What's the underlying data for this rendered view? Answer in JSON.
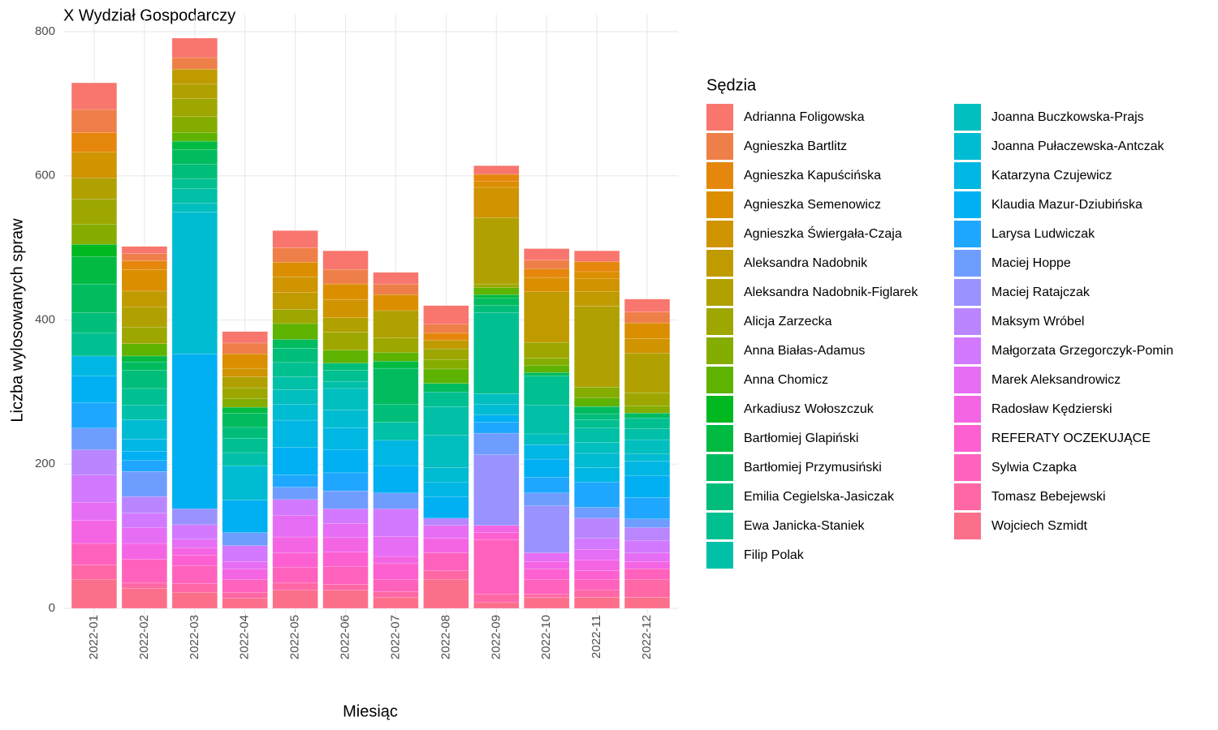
{
  "chart_data": {
    "type": "stacked_bar",
    "title": "X Wydział Gospodarczy",
    "x_label": "Miesiąc",
    "y_label": "Liczba wylosowanych spraw",
    "legend_title": "Sędzia",
    "categories": [
      "2022-01",
      "2022-02",
      "2022-03",
      "2022-04",
      "2022-05",
      "2022-06",
      "2022-07",
      "2022-08",
      "2022-09",
      "2022-10",
      "2022-11",
      "2022-12"
    ],
    "ylim": [
      0,
      800
    ],
    "yticks": [
      0,
      200,
      400,
      600,
      800
    ],
    "grid": true,
    "series": [
      {
        "name": "Adrianna Foligowska",
        "color": "#F8766D",
        "values": [
          37,
          10,
          27,
          16,
          24,
          26,
          16,
          26,
          12,
          16,
          15,
          18
        ]
      },
      {
        "name": "Agnieszka Bartlitz",
        "color": "#EF7F49",
        "values": [
          32,
          10,
          16,
          15,
          20,
          20,
          15,
          12,
          0,
          12,
          0,
          15
        ]
      },
      {
        "name": "Agnieszka Kapuścińska",
        "color": "#E5870C",
        "values": [
          27,
          12,
          0,
          0,
          0,
          0,
          0,
          10,
          10,
          12,
          14,
          0
        ]
      },
      {
        "name": "Agnieszka Semenowicz",
        "color": "#DB8E00",
        "values": [
          0,
          30,
          0,
          20,
          20,
          22,
          22,
          0,
          8,
          20,
          10,
          22
        ]
      },
      {
        "name": "Agnieszka Świergała-Czaja",
        "color": "#CF9400",
        "values": [
          36,
          0,
          0,
          12,
          22,
          25,
          0,
          0,
          42,
          0,
          18,
          20
        ]
      },
      {
        "name": "Aleksandra Nadobnik",
        "color": "#C09B00",
        "values": [
          0,
          22,
          21,
          0,
          23,
          0,
          0,
          12,
          0,
          70,
          20,
          0
        ]
      },
      {
        "name": "Aleksandra Nadobnik-Figlarek",
        "color": "#B0A100",
        "values": [
          29,
          28,
          20,
          15,
          0,
          20,
          38,
          0,
          92,
          0,
          112,
          55
        ]
      },
      {
        "name": "Alicja Zarzecka",
        "color": "#9DA700",
        "values": [
          35,
          23,
          25,
          15,
          20,
          25,
          20,
          15,
          5,
          22,
          0,
          18
        ]
      },
      {
        "name": "Anna Białas-Adamus",
        "color": "#85AD00",
        "values": [
          28,
          0,
          22,
          12,
          0,
          0,
          0,
          13,
          0,
          10,
          15,
          10
        ]
      },
      {
        "name": "Anna Chomicz",
        "color": "#5EB300",
        "values": [
          0,
          17,
          12,
          0,
          22,
          18,
          12,
          20,
          10,
          10,
          12,
          0
        ]
      },
      {
        "name": "Arkadiusz Wołoszczuk",
        "color": "#00B81F",
        "values": [
          17,
          0,
          0,
          0,
          0,
          0,
          0,
          0,
          0,
          0,
          0,
          0
        ]
      },
      {
        "name": "Bartłomiej Glapiński",
        "color": "#00BA42",
        "values": [
          38,
          8,
          12,
          8,
          0,
          0,
          10,
          0,
          5,
          0,
          0,
          0
        ]
      },
      {
        "name": "Bartłomiej Przymusiński",
        "color": "#00BC5F",
        "values": [
          40,
          12,
          20,
          20,
          12,
          0,
          50,
          12,
          10,
          5,
          10,
          7
        ]
      },
      {
        "name": "Emilia Cegielska-Jasiczak",
        "color": "#00BE79",
        "values": [
          28,
          25,
          20,
          15,
          20,
          10,
          25,
          0,
          10,
          0,
          8,
          0
        ]
      },
      {
        "name": "Ewa Janicka-Staniek",
        "color": "#00C091",
        "values": [
          32,
          23,
          14,
          20,
          20,
          15,
          0,
          20,
          112,
          40,
          12,
          15
        ]
      },
      {
        "name": "Filip Polak",
        "color": "#00C0A8",
        "values": [
          0,
          20,
          20,
          18,
          18,
          10,
          25,
          40,
          0,
          40,
          20,
          15
        ]
      },
      {
        "name": "Joanna Buczkowska-Prajs",
        "color": "#00BFBE",
        "values": [
          0,
          0,
          12,
          0,
          20,
          30,
          0,
          45,
          15,
          15,
          15,
          20
        ]
      },
      {
        "name": "Joanna Pułaczewska-Antczak",
        "color": "#00BCD2",
        "values": [
          0,
          27,
          197,
          48,
          22,
          25,
          0,
          20,
          15,
          0,
          20,
          10
        ]
      },
      {
        "name": "Katarzyna Czujewicz",
        "color": "#00B7E4",
        "values": [
          28,
          17,
          0,
          0,
          38,
          30,
          35,
          20,
          0,
          20,
          20,
          20
        ]
      },
      {
        "name": "Klaudia Mazur-Dziubińska",
        "color": "#00B0F3",
        "values": [
          37,
          13,
          215,
          45,
          38,
          32,
          38,
          30,
          10,
          25,
          0,
          30
        ]
      },
      {
        "name": "Larysa Ludwiczak",
        "color": "#1FA7FF",
        "values": [
          35,
          15,
          0,
          0,
          17,
          25,
          0,
          0,
          15,
          22,
          35,
          30
        ]
      },
      {
        "name": "Maciej Hoppe",
        "color": "#6E9DFF",
        "values": [
          30,
          35,
          0,
          18,
          17,
          25,
          22,
          0,
          30,
          18,
          15,
          12
        ]
      },
      {
        "name": "Maciej Ratajczak",
        "color": "#9A92FF",
        "values": [
          0,
          0,
          22,
          0,
          0,
          0,
          0,
          0,
          98,
          65,
          0,
          0
        ]
      },
      {
        "name": "Maksym Wróbel",
        "color": "#B986FF",
        "values": [
          35,
          23,
          0,
          0,
          0,
          0,
          0,
          10,
          0,
          0,
          28,
          18
        ]
      },
      {
        "name": "Małgorzata Grzegorczyk-Pomin",
        "color": "#D279FF",
        "values": [
          38,
          20,
          20,
          22,
          22,
          20,
          38,
          0,
          0,
          0,
          15,
          17
        ]
      },
      {
        "name": "Marek Aleksandrowicz",
        "color": "#E66EF4",
        "values": [
          25,
          22,
          12,
          10,
          30,
          20,
          28,
          18,
          0,
          12,
          15,
          12
        ]
      },
      {
        "name": "Radosław Kędzierski",
        "color": "#F465E4",
        "values": [
          32,
          22,
          10,
          15,
          22,
          20,
          10,
          20,
          10,
          10,
          15,
          10
        ]
      },
      {
        "name": "REFERATY OCZEKUJĄCE",
        "color": "#FD61D1",
        "values": [
          0,
          0,
          15,
          0,
          20,
          20,
          22,
          0,
          10,
          15,
          12,
          0
        ]
      },
      {
        "name": "Sylwia Czapka",
        "color": "#FF62BC",
        "values": [
          30,
          33,
          25,
          18,
          22,
          25,
          17,
          25,
          75,
          20,
          15,
          15
        ]
      },
      {
        "name": "Tomasz Bebejewski",
        "color": "#FF67A5",
        "values": [
          20,
          7,
          12,
          8,
          10,
          8,
          8,
          12,
          12,
          5,
          10,
          25
        ]
      },
      {
        "name": "Wojciech Szmidt",
        "color": "#FC6F8B",
        "values": [
          40,
          28,
          22,
          14,
          25,
          25,
          15,
          40,
          8,
          15,
          15,
          15
        ]
      }
    ]
  }
}
